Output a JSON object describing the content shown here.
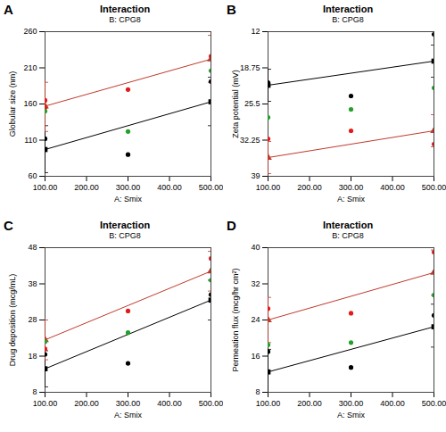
{
  "chart_data": [
    {
      "type": "line",
      "panel_label": "A",
      "title": "Interaction",
      "subtitle": "B: CPG8",
      "x_label": "A: Smix",
      "y_label": "Globular size (nm)",
      "x": [
        100,
        500
      ],
      "xlim": [
        100,
        500
      ],
      "xticks": [
        {
          "value": 100,
          "label": "100.00"
        },
        {
          "value": 200,
          "label": "200.00"
        },
        {
          "value": 300,
          "label": "300.00"
        },
        {
          "value": 400,
          "label": "400.00"
        },
        {
          "value": 500,
          "label": "500.00"
        }
      ],
      "ylim": [
        60,
        260
      ],
      "yticks": [
        60,
        110,
        160,
        210,
        260
      ],
      "grid": false,
      "series": [
        {
          "color": "#000000",
          "marker": "square",
          "values": [
            97,
            163
          ],
          "error_low": [
            65,
            130
          ],
          "error_high": [
            130,
            197
          ]
        },
        {
          "color": "#c0392b",
          "marker": "triangle",
          "values": [
            157,
            222
          ],
          "error_low": [
            122,
            190
          ],
          "error_high": [
            190,
            255
          ]
        }
      ],
      "points": {
        "x": [
          100,
          100,
          100,
          100,
          300,
          300,
          300,
          500,
          500,
          500
        ],
        "y": [
          112,
          165,
          155,
          150,
          180,
          122,
          90,
          226,
          206,
          191
        ],
        "colors": [
          "#000000",
          "#e31a1c",
          "#e31a1c",
          "#22a02a",
          "#e31a1c",
          "#22a02a",
          "#000000",
          "#e31a1c",
          "#22a02a",
          "#000000"
        ]
      }
    },
    {
      "type": "line",
      "panel_label": "B",
      "title": "Interaction",
      "subtitle": "B: CPG8",
      "x_label": "A: Smix",
      "y_label": "Zeta potential (mV)",
      "x": [
        100,
        500
      ],
      "xlim": [
        100,
        500
      ],
      "xticks": [
        {
          "value": 100,
          "label": "100.00"
        },
        {
          "value": 200,
          "label": "200.00"
        },
        {
          "value": 300,
          "label": "300.00"
        },
        {
          "value": 400,
          "label": "400.00"
        },
        {
          "value": 500,
          "label": "500.00"
        }
      ],
      "ylim": [
        39,
        12
      ],
      "yticks": [
        12,
        18.75,
        25.5,
        32.25,
        39
      ],
      "grid": false,
      "series": [
        {
          "color": "#000000",
          "marker": "square",
          "values": [
            22,
            17.5
          ],
          "error_low": [
            19,
            14.5
          ],
          "error_high": [
            25,
            20.5
          ]
        },
        {
          "color": "#c0392b",
          "marker": "triangle",
          "values": [
            35.5,
            30.5
          ],
          "error_low": [
            32.5,
            27.5
          ],
          "error_high": [
            38.5,
            33.5
          ]
        }
      ],
      "points": {
        "x": [
          100,
          100,
          100,
          300,
          300,
          300,
          500,
          500,
          500
        ],
        "y": [
          21.5,
          28,
          32,
          24,
          26.5,
          30.5,
          12.5,
          22.5,
          33
        ],
        "colors": [
          "#000000",
          "#22a02a",
          "#e31a1c",
          "#000000",
          "#22a02a",
          "#e31a1c",
          "#000000",
          "#22a02a",
          "#e31a1c"
        ]
      }
    },
    {
      "type": "line",
      "panel_label": "C",
      "title": "Interaction",
      "subtitle": "B: CPG8",
      "x_label": "A: Smix",
      "y_label": "Drug deposition (mcg/mL)",
      "x": [
        100,
        500
      ],
      "xlim": [
        100,
        500
      ],
      "xticks": [
        {
          "value": 100,
          "label": "100.00"
        },
        {
          "value": 200,
          "label": "200.00"
        },
        {
          "value": 300,
          "label": "300.00"
        },
        {
          "value": 400,
          "label": "400.00"
        },
        {
          "value": 500,
          "label": "500.00"
        }
      ],
      "ylim": [
        8,
        48
      ],
      "yticks": [
        8,
        18,
        28,
        38,
        48
      ],
      "grid": false,
      "series": [
        {
          "color": "#000000",
          "marker": "square",
          "values": [
            14.5,
            33.5
          ],
          "error_low": [
            9.5,
            28
          ],
          "error_high": [
            19.5,
            39
          ]
        },
        {
          "color": "#c0392b",
          "marker": "triangle",
          "values": [
            22.5,
            41.5
          ],
          "error_low": [
            17,
            36
          ],
          "error_high": [
            28,
            47
          ]
        }
      ],
      "points": {
        "x": [
          100,
          100,
          100,
          300,
          300,
          300,
          500,
          500,
          500
        ],
        "y": [
          22,
          20,
          18.5,
          30.5,
          24.5,
          16,
          45,
          39,
          35
        ],
        "colors": [
          "#22a02a",
          "#e31a1c",
          "#000000",
          "#e31a1c",
          "#22a02a",
          "#000000",
          "#e31a1c",
          "#22a02a",
          "#000000"
        ]
      }
    },
    {
      "type": "line",
      "panel_label": "D",
      "title": "Interaction",
      "subtitle": "B: CPG8",
      "x_label": "A: Smix",
      "y_label": "Permeation flux (mcg/hr cm²)",
      "x": [
        100,
        500
      ],
      "xlim": [
        100,
        500
      ],
      "xticks": [
        {
          "value": 100,
          "label": "100.00"
        },
        {
          "value": 200,
          "label": "200.00"
        },
        {
          "value": 300,
          "label": "300.00"
        },
        {
          "value": 400,
          "label": "400.00"
        },
        {
          "value": 500,
          "label": "500.00"
        }
      ],
      "ylim": [
        8,
        40
      ],
      "yticks": [
        8,
        16,
        24,
        32,
        40
      ],
      "grid": false,
      "series": [
        {
          "color": "#000000",
          "marker": "square",
          "values": [
            12.5,
            22.5
          ],
          "error_low": [
            8,
            18
          ],
          "error_high": [
            17.5,
            27.5
          ]
        },
        {
          "color": "#c0392b",
          "marker": "triangle",
          "values": [
            24,
            34.5
          ],
          "error_low": [
            19,
            29.5
          ],
          "error_high": [
            29,
            39.5
          ]
        }
      ],
      "points": {
        "x": [
          100,
          100,
          100,
          300,
          300,
          300,
          500,
          500,
          500
        ],
        "y": [
          26.5,
          18.5,
          17,
          25.5,
          19,
          13.5,
          39,
          29.5,
          25
        ],
        "colors": [
          "#e31a1c",
          "#22a02a",
          "#000000",
          "#e31a1c",
          "#22a02a",
          "#000000",
          "#e31a1c",
          "#22a02a",
          "#000000"
        ]
      }
    }
  ]
}
